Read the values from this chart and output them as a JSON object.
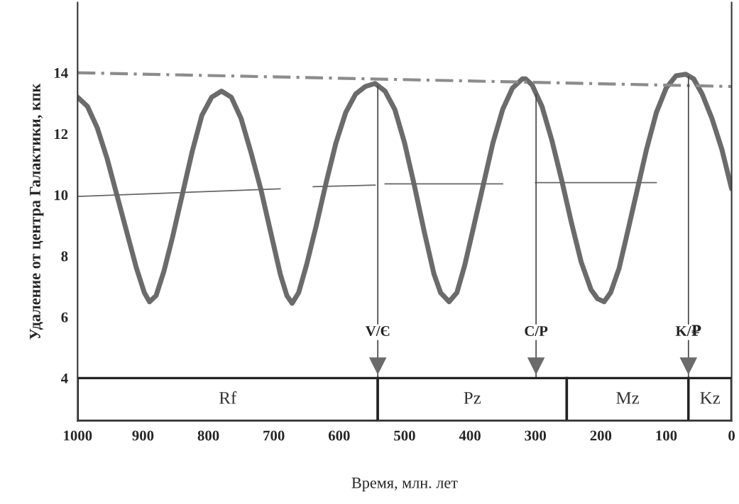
{
  "chart_data": {
    "type": "line",
    "xlabel": "Время, млн. лет",
    "ylabel": "Удаление от центра Галактики, кпк",
    "series": [
      {
        "color": "#6b6b6b",
        "line_style": "solid",
        "x": [
          1000,
          985,
          970,
          955,
          940,
          925,
          910,
          898,
          890,
          880,
          868,
          855,
          840,
          825,
          810,
          795,
          780,
          765,
          750,
          735,
          720,
          705,
          690,
          680,
          672,
          662,
          650,
          635,
          620,
          605,
          590,
          575,
          560,
          545,
          530,
          515,
          500,
          485,
          470,
          455,
          445,
          432,
          420,
          408,
          395,
          380,
          365,
          350,
          335,
          320,
          315,
          305,
          290,
          275,
          260,
          245,
          230,
          215,
          205,
          195,
          185,
          172,
          160,
          145,
          130,
          115,
          100,
          85,
          70,
          58,
          45,
          30,
          15,
          0
        ],
        "values": [
          13.2,
          12.9,
          12.2,
          11.2,
          10.0,
          8.8,
          7.6,
          6.8,
          6.5,
          6.7,
          7.5,
          8.6,
          10.0,
          11.4,
          12.6,
          13.2,
          13.4,
          13.2,
          12.5,
          11.4,
          10.2,
          8.8,
          7.4,
          6.7,
          6.45,
          6.8,
          7.7,
          9.0,
          10.4,
          11.7,
          12.7,
          13.3,
          13.55,
          13.65,
          13.4,
          12.8,
          11.7,
          10.3,
          8.8,
          7.4,
          6.8,
          6.5,
          6.8,
          7.7,
          8.9,
          10.3,
          11.7,
          12.8,
          13.5,
          13.8,
          13.8,
          13.6,
          12.9,
          11.8,
          10.5,
          9.1,
          7.8,
          6.9,
          6.6,
          6.5,
          6.8,
          7.6,
          8.7,
          10.1,
          11.5,
          12.7,
          13.5,
          13.9,
          13.95,
          13.8,
          13.3,
          12.5,
          11.5,
          10.2
        ]
      },
      {
        "color": "#8c8c8c",
        "line_style": "dashed",
        "x": [
          1000,
          0
        ],
        "values": [
          14.0,
          13.55
        ]
      },
      {
        "color": "#666666",
        "line_style": "solid",
        "x": [
          1000,
          690
        ],
        "values": [
          9.95,
          10.2
        ]
      },
      {
        "color": "#666666",
        "line_style": "solid",
        "x": [
          640,
          545
        ],
        "values": [
          10.27,
          10.32
        ]
      },
      {
        "color": "#666666",
        "line_style": "solid",
        "x": [
          530,
          350
        ],
        "values": [
          10.36,
          10.36
        ]
      },
      {
        "color": "#666666",
        "line_style": "solid",
        "x": [
          300,
          115
        ],
        "values": [
          10.4,
          10.4
        ]
      }
    ],
    "xlim": [
      1000,
      0
    ],
    "ylim": [
      2.6,
      16.3
    ],
    "xticks": [
      1000,
      900,
      800,
      700,
      600,
      500,
      400,
      300,
      200,
      100,
      0
    ],
    "yticks": [
      4,
      6,
      8,
      10,
      12,
      14
    ],
    "ref_lines": [
      {
        "axis": "x",
        "value": 541,
        "label": "V/Є"
      },
      {
        "axis": "x",
        "value": 299,
        "label": "C/P"
      },
      {
        "axis": "x",
        "value": 66,
        "label": "K/₽"
      }
    ],
    "bands": [
      {
        "axis": "x",
        "from": 1000,
        "to": 541,
        "label": "Rf"
      },
      {
        "axis": "x",
        "from": 541,
        "to": 252,
        "label": "Pz"
      },
      {
        "axis": "x",
        "from": 252,
        "to": 66,
        "label": "Mz"
      },
      {
        "axis": "x",
        "from": 66,
        "to": 0,
        "label": "Kz"
      }
    ],
    "grid": false,
    "legend": false,
    "marker": "none"
  }
}
